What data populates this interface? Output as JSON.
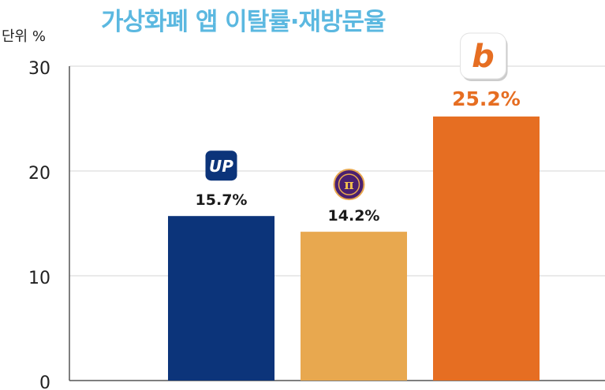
{
  "chart_data": {
    "type": "bar",
    "title": "가상화폐 앱 이탈률·재방문율",
    "unit_label": "단위 %",
    "ylim": [
      0,
      30
    ],
    "yticks": [
      0,
      10,
      20,
      30
    ],
    "grid": true,
    "categories": [
      "",
      "",
      ""
    ],
    "values": [
      15.7,
      14.2,
      25.2
    ],
    "value_labels": [
      "15.7%",
      "14.2%",
      "25.2%"
    ],
    "logo_icons": [
      "upbit-logo-icon",
      "pi-network-logo-icon",
      "bithumb-logo-icon"
    ],
    "colors": [
      "#0c347a",
      "#e8a84f",
      "#e66e22"
    ],
    "label_colors": [
      "#1a1a1a",
      "#1a1a1a",
      "#e66e22"
    ],
    "logo_marks": [
      "UP",
      "π",
      "b"
    ]
  }
}
